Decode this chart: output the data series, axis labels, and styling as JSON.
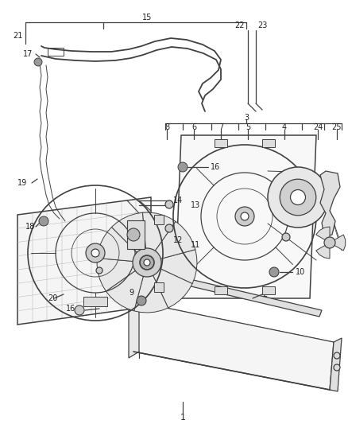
{
  "bg_color": "#ffffff",
  "line_color": "#404040",
  "lw": 0.9,
  "fig_width": 4.38,
  "fig_height": 5.33,
  "dpi": 100
}
